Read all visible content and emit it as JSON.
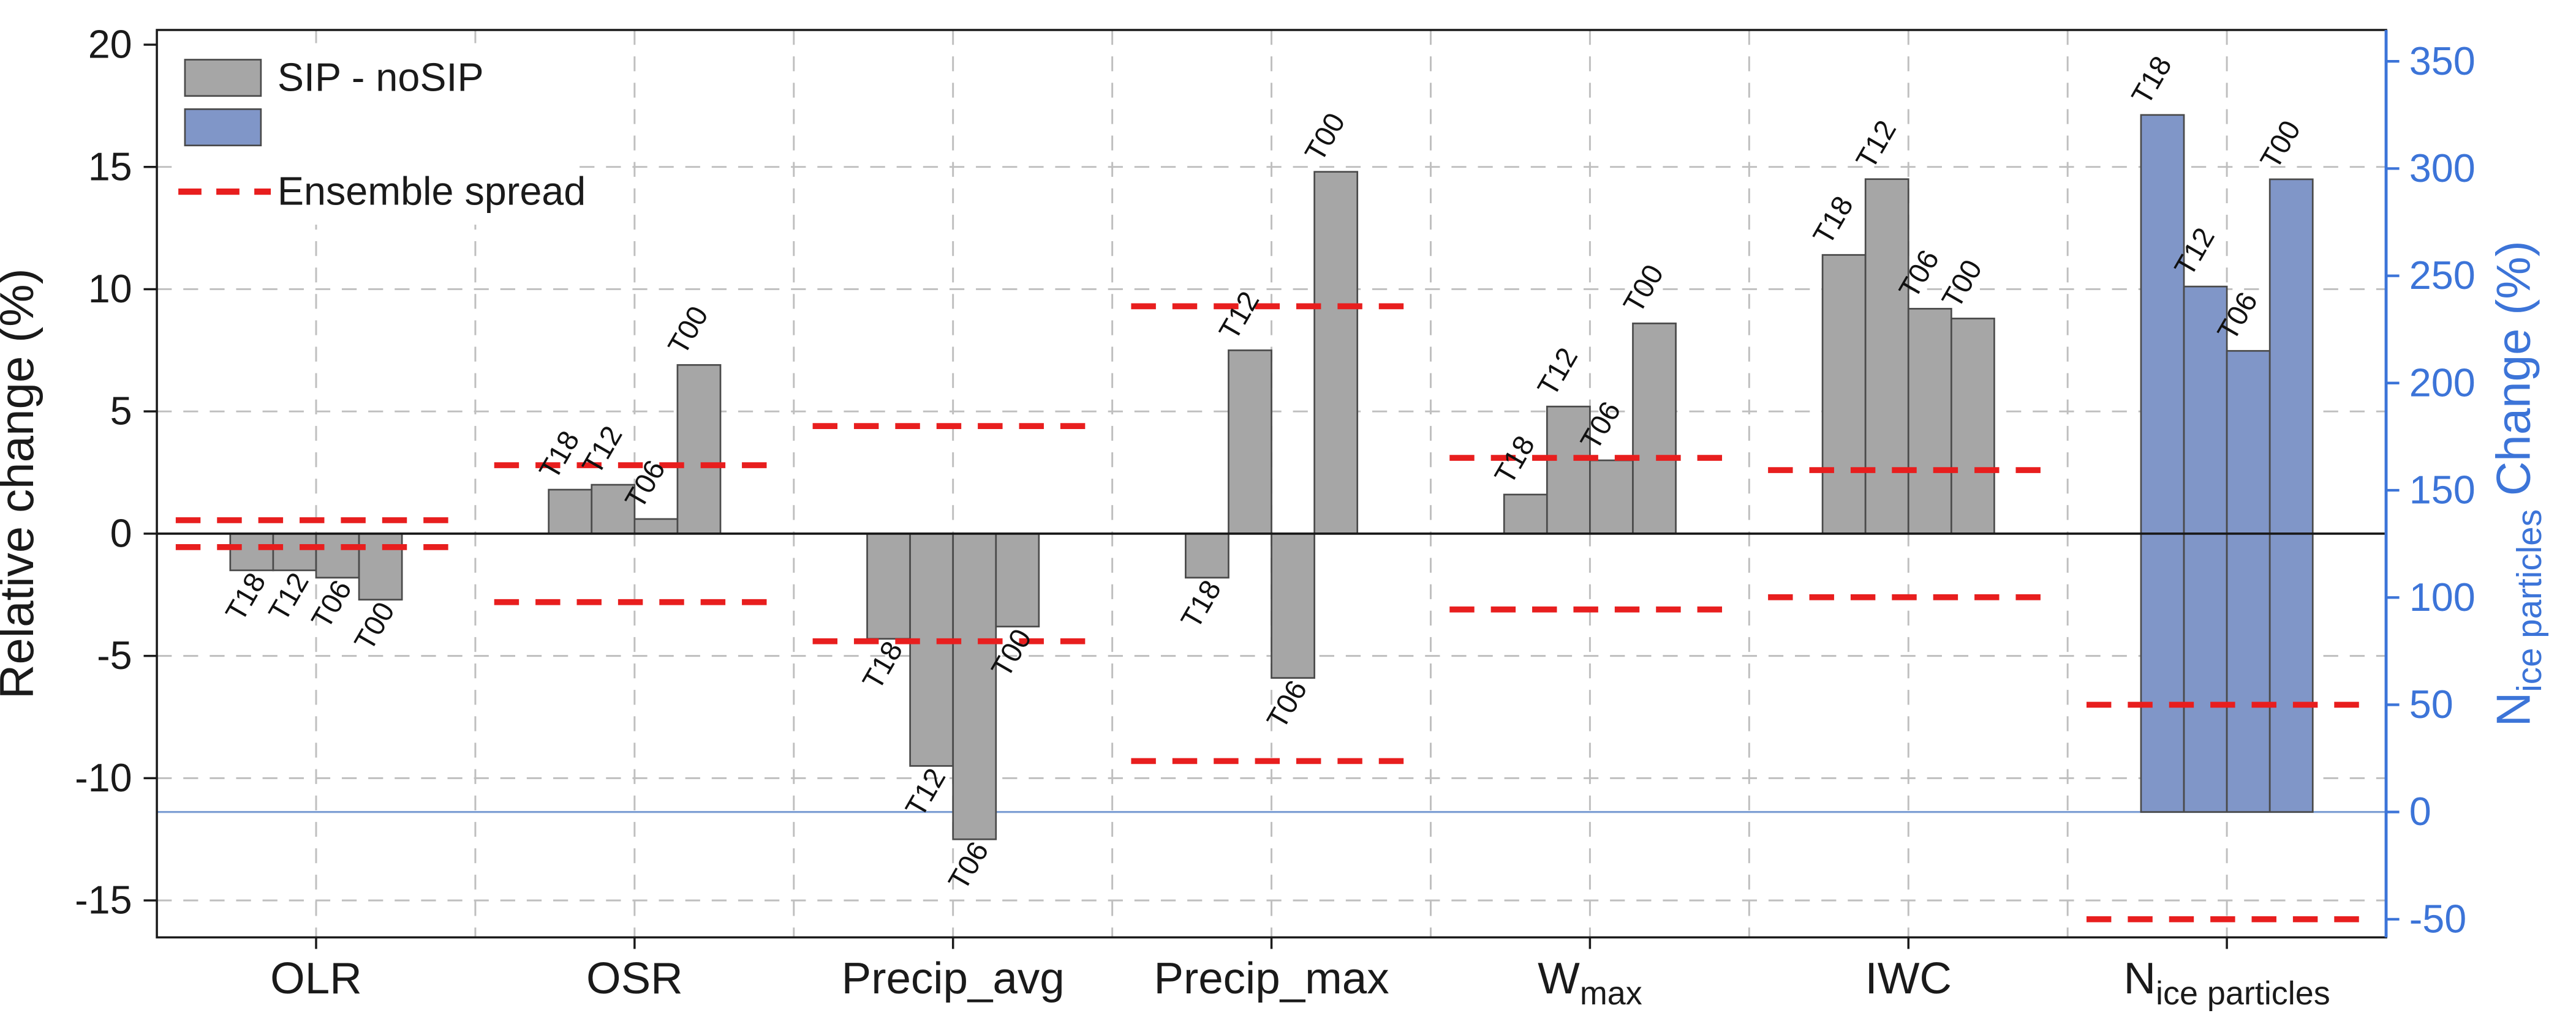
{
  "chart_data": {
    "type": "bar",
    "title": "",
    "legend": [
      {
        "swatch": "bar",
        "color_key": "sip_gray",
        "label": "SIP - noSIP"
      },
      {
        "swatch": "bar",
        "color_key": "nice_blue",
        "label": ""
      },
      {
        "swatch": "dash",
        "color_key": "spread_red",
        "label": "Ensemble spread"
      }
    ],
    "left_axis": {
      "label": "Relative change (%)",
      "min": -15,
      "max": 20,
      "ticks": [
        20,
        15,
        10,
        5,
        0,
        -5,
        -10,
        -15
      ]
    },
    "right_axis": {
      "label_parts": [
        {
          "text": "N"
        },
        {
          "text": "ice particles",
          "sub": true
        },
        {
          "text": " Change (%)"
        }
      ],
      "min": -50,
      "max": 350,
      "ticks": [
        350,
        300,
        250,
        200,
        150,
        100,
        50,
        0,
        -50
      ]
    },
    "bar_labels": [
      "T18",
      "T12",
      "T06",
      "T00"
    ],
    "groups": [
      {
        "name_parts": [
          {
            "text": "OLR"
          }
        ],
        "axis": "left",
        "spread": 0.55,
        "values": [
          -1.5,
          -1.5,
          -1.8,
          -2.7
        ]
      },
      {
        "name_parts": [
          {
            "text": "OSR"
          }
        ],
        "axis": "left",
        "spread": 2.8,
        "values": [
          1.8,
          2.0,
          0.6,
          6.9
        ]
      },
      {
        "name_parts": [
          {
            "text": "Precip_avg"
          }
        ],
        "axis": "left",
        "spread": 4.4,
        "values": [
          -4.3,
          -9.5,
          -12.5,
          -3.8
        ]
      },
      {
        "name_parts": [
          {
            "text": "Precip_max"
          }
        ],
        "axis": "left",
        "spread": 9.3,
        "values": [
          -1.8,
          7.5,
          -5.9,
          14.8
        ]
      },
      {
        "name_parts": [
          {
            "text": "W"
          },
          {
            "text": "max",
            "sub": true
          }
        ],
        "axis": "left",
        "spread": 3.1,
        "values": [
          1.6,
          5.2,
          3.0,
          8.6
        ]
      },
      {
        "name_parts": [
          {
            "text": "IWC"
          }
        ],
        "axis": "left",
        "spread": 2.6,
        "values": [
          11.4,
          14.5,
          9.2,
          8.8
        ]
      },
      {
        "name_parts": [
          {
            "text": "N"
          },
          {
            "text": "ice particles",
            "sub": true
          }
        ],
        "axis": "right",
        "spread": 50,
        "values": [
          325,
          245,
          215,
          295
        ]
      }
    ],
    "colors": {
      "sip_gray": "#a6a6a6",
      "nice_blue": "#8096c8",
      "spread_red": "#e81e1e",
      "right_axis_blue": "#3c74d8",
      "bar_edge": "#4a4a4a",
      "grid": "#bfbfbf",
      "zero_line": "#1a1a1a",
      "right_zero_line": "#7f9fd4",
      "axis_black": "#1a1a1a"
    }
  }
}
